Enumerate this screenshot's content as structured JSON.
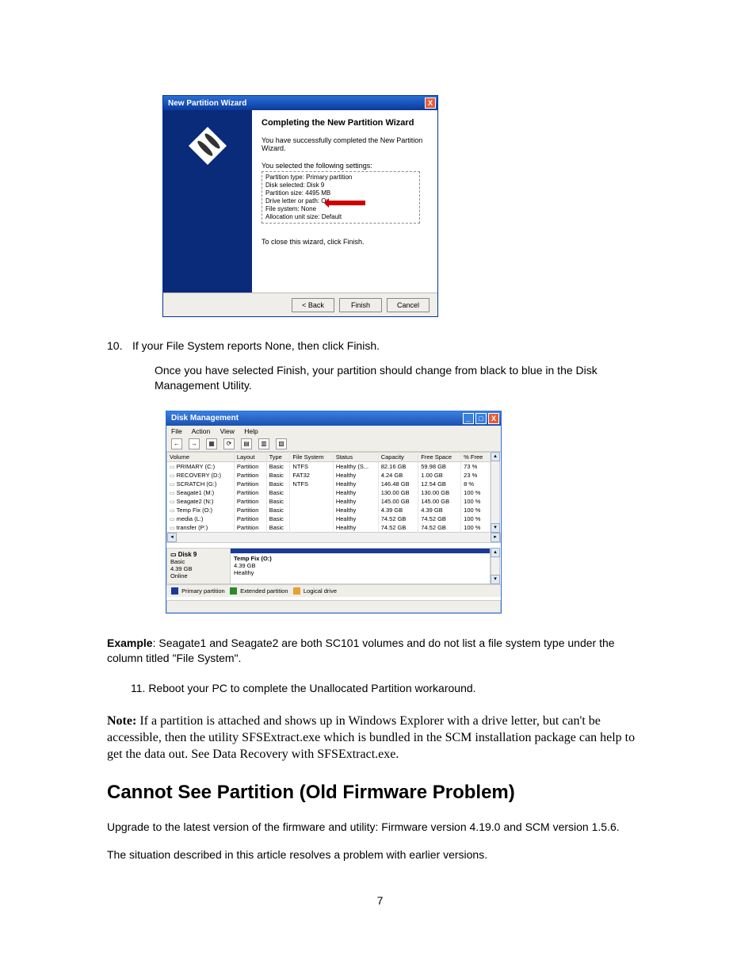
{
  "wizard": {
    "title": "New Partition Wizard",
    "heading": "Completing the New Partition Wizard",
    "subtext": "You have successfully completed the New Partition Wizard.",
    "selected_label": "You selected the following settings:",
    "settings": [
      "Partition type: Primary partition",
      "Disk selected: Disk 9",
      "Partition size: 4495 MB",
      "Drive letter or path: O:",
      "File system: None",
      "Allocation unit size: Default"
    ],
    "close_hint": "To close this wizard, click Finish.",
    "buttons": {
      "back": "< Back",
      "finish": "Finish",
      "cancel": "Cancel"
    },
    "arrow_color": "#d00000",
    "titlebar_gradient": [
      "#2a6fd4",
      "#0a3a9c"
    ],
    "left_panel_color": "#0a2a7a"
  },
  "step10_num": "10.",
  "step10_text": "If your File System reports None, then click Finish.",
  "after_finish_text": "Once you have selected Finish, your partition should change from black to blue in the Disk Management Utility.",
  "dm": {
    "title": "Disk Management",
    "menu": [
      "File",
      "Action",
      "View",
      "Help"
    ],
    "columns": [
      "Volume",
      "Layout",
      "Type",
      "File System",
      "Status",
      "Capacity",
      "Free Space",
      "% Free"
    ],
    "rows": [
      [
        "PRIMARY (C:)",
        "Partition",
        "Basic",
        "NTFS",
        "Healthy (S...",
        "82.16 GB",
        "59.98 GB",
        "73 %"
      ],
      [
        "RECOVERY (D:)",
        "Partition",
        "Basic",
        "FAT32",
        "Healthy",
        "4.24 GB",
        "1.00 GB",
        "23 %"
      ],
      [
        "SCRATCH (G:)",
        "Partition",
        "Basic",
        "NTFS",
        "Healthy",
        "146.48 GB",
        "12.54 GB",
        "8 %"
      ],
      [
        "Seagate1 (M:)",
        "Partition",
        "Basic",
        "",
        "Healthy",
        "130.00 GB",
        "130.00 GB",
        "100 %"
      ],
      [
        "Seagate2 (N:)",
        "Partition",
        "Basic",
        "",
        "Healthy",
        "145.00 GB",
        "145.00 GB",
        "100 %"
      ],
      [
        "Temp Fix (O:)",
        "Partition",
        "Basic",
        "",
        "Healthy",
        "4.39 GB",
        "4.39 GB",
        "100 %"
      ],
      [
        "media (L:)",
        "Partition",
        "Basic",
        "",
        "Healthy",
        "74.52 GB",
        "74.52 GB",
        "100 %"
      ],
      [
        "transfer (P:)",
        "Partition",
        "Basic",
        "",
        "Healthy",
        "74.52 GB",
        "74.52 GB",
        "100 %"
      ]
    ],
    "disk": {
      "name": "Disk 9",
      "type": "Basic",
      "size": "4.39 GB",
      "status": "Online",
      "part_name": "Temp Fix (O:)",
      "part_size": "4.39 GB",
      "part_status": "Healthy",
      "top_color": "#1a3a9a"
    },
    "legend": [
      {
        "color": "#1a3a9a",
        "label": "Primary partition"
      },
      {
        "color": "#2a8a2a",
        "label": "Extended partition"
      },
      {
        "color": "#e8a030",
        "label": "Logical drive"
      }
    ],
    "window_colors": {
      "titlebar": [
        "#3a80e0",
        "#1a50b0"
      ],
      "close": "#e85c3a",
      "min": "#3a80e0",
      "max": "#3a80e0"
    }
  },
  "example_label": "Example",
  "example_text": ": Seagate1 and Seagate2 are both SC101 volumes and do not list a file system type under the column titled \"File System\".",
  "step11": "11. Reboot your PC to complete the Unallocated Partition workaround.",
  "note_label": "Note:",
  "note_text": " If a partition is attached and shows up in Windows Explorer with a drive letter, but can't be accessible, then the utility SFSExtract.exe which is bundled in the SCM installation package can help to get the data out. See Data Recovery with SFSExtract.exe.",
  "section_heading": "Cannot See Partition (Old Firmware Problem)",
  "para1": "Upgrade to the latest version of the firmware and utility: Firmware version 4.19.0 and SCM version 1.5.6.",
  "para2": "The situation described in this article resolves a problem with earlier versions.",
  "page_number": "7"
}
